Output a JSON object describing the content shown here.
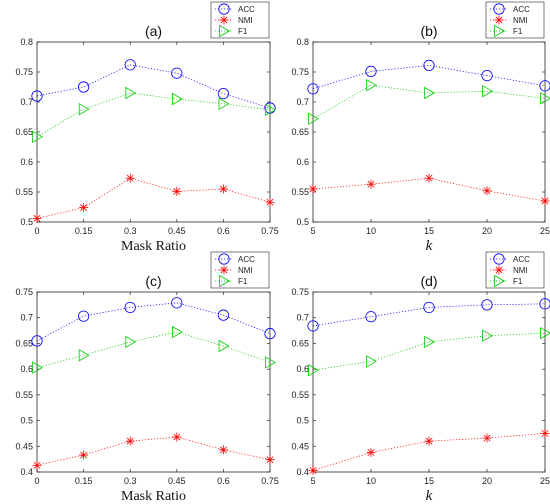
{
  "chart_data": [
    {
      "type": "line",
      "title": "(a)",
      "xlabel": "Mask Ratio",
      "xlabel_style": "serif",
      "x": [
        0,
        0.15,
        0.3,
        0.45,
        0.6,
        0.75
      ],
      "xticks": [
        "0",
        "0.15",
        "0.3",
        "0.45",
        "0.6",
        "0.75"
      ],
      "xlim": [
        0,
        0.75
      ],
      "ylim": [
        0.5,
        0.8
      ],
      "yticks": [
        "0.5",
        "0.55",
        "0.6",
        "0.65",
        "0.7",
        "0.75",
        "0.8"
      ],
      "legend": "top-right",
      "series": [
        {
          "name": "ACC",
          "color": "#0000ff",
          "marker": "circle",
          "values": [
            0.71,
            0.725,
            0.762,
            0.748,
            0.714,
            0.69
          ]
        },
        {
          "name": "NMI",
          "color": "#ff0000",
          "marker": "asterisk",
          "values": [
            0.506,
            0.524,
            0.573,
            0.551,
            0.555,
            0.533
          ]
        },
        {
          "name": "F1",
          "color": "#00cc00",
          "marker": "triangle-right",
          "values": [
            0.642,
            0.688,
            0.715,
            0.705,
            0.697,
            0.687
          ]
        }
      ]
    },
    {
      "type": "line",
      "title": "(b)",
      "xlabel": "k",
      "xlabel_style": "italic",
      "x": [
        5,
        10,
        15,
        20,
        25
      ],
      "xticks": [
        "5",
        "10",
        "15",
        "20",
        "25"
      ],
      "xlim": [
        5,
        25
      ],
      "ylim": [
        0.5,
        0.8
      ],
      "yticks": [
        "0.5",
        "0.55",
        "0.6",
        "0.65",
        "0.7",
        "0.75",
        "0.8"
      ],
      "legend": "top-right",
      "series": [
        {
          "name": "ACC",
          "color": "#0000ff",
          "marker": "circle",
          "values": [
            0.722,
            0.751,
            0.761,
            0.744,
            0.727
          ]
        },
        {
          "name": "NMI",
          "color": "#ff0000",
          "marker": "asterisk",
          "values": [
            0.555,
            0.563,
            0.573,
            0.552,
            0.535
          ]
        },
        {
          "name": "F1",
          "color": "#00cc00",
          "marker": "triangle-right",
          "values": [
            0.672,
            0.728,
            0.715,
            0.718,
            0.706
          ]
        }
      ]
    },
    {
      "type": "line",
      "title": "(c)",
      "xlabel": "Mask Ratio",
      "xlabel_style": "serif",
      "x": [
        0,
        0.15,
        0.3,
        0.45,
        0.6,
        0.75
      ],
      "xticks": [
        "0",
        "0.15",
        "0.3",
        "0.45",
        "0.6",
        "0.75"
      ],
      "xlim": [
        0,
        0.75
      ],
      "ylim": [
        0.4,
        0.75
      ],
      "yticks": [
        "0.4",
        "0.45",
        "0.5",
        "0.55",
        "0.6",
        "0.65",
        "0.7",
        "0.75"
      ],
      "legend": "top-right",
      "series": [
        {
          "name": "ACC",
          "color": "#0000ff",
          "marker": "circle",
          "values": [
            0.655,
            0.703,
            0.72,
            0.729,
            0.705,
            0.669
          ]
        },
        {
          "name": "NMI",
          "color": "#ff0000",
          "marker": "asterisk",
          "values": [
            0.413,
            0.433,
            0.46,
            0.468,
            0.443,
            0.424
          ]
        },
        {
          "name": "F1",
          "color": "#00cc00",
          "marker": "triangle-right",
          "values": [
            0.603,
            0.627,
            0.653,
            0.672,
            0.645,
            0.613
          ]
        }
      ]
    },
    {
      "type": "line",
      "title": "(d)",
      "xlabel": "k",
      "xlabel_style": "italic",
      "x": [
        5,
        10,
        15,
        20,
        25
      ],
      "xticks": [
        "5",
        "10",
        "15",
        "20",
        "25"
      ],
      "xlim": [
        5,
        25
      ],
      "ylim": [
        0.4,
        0.75
      ],
      "yticks": [
        "0.4",
        "0.45",
        "0.5",
        "0.55",
        "0.6",
        "0.65",
        "0.7",
        "0.75"
      ],
      "legend": "top-right",
      "series": [
        {
          "name": "ACC",
          "color": "#0000ff",
          "marker": "circle",
          "values": [
            0.684,
            0.702,
            0.72,
            0.725,
            0.727
          ]
        },
        {
          "name": "NMI",
          "color": "#ff0000",
          "marker": "asterisk",
          "values": [
            0.403,
            0.438,
            0.46,
            0.466,
            0.475
          ]
        },
        {
          "name": "F1",
          "color": "#00cc00",
          "marker": "triangle-right",
          "values": [
            0.598,
            0.615,
            0.653,
            0.665,
            0.67
          ]
        }
      ]
    }
  ]
}
